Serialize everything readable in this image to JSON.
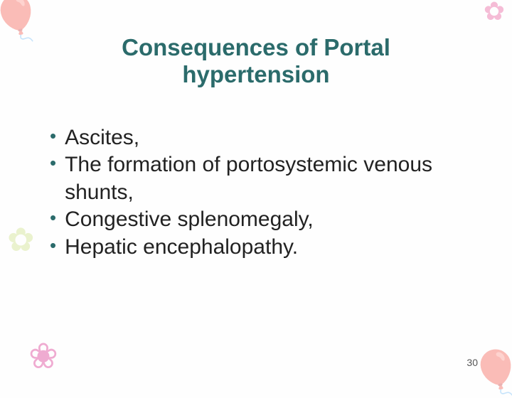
{
  "title": {
    "text": "Consequences of Portal hypertension",
    "fontsize": 33,
    "color": "#2b6b6b",
    "weight": "bold"
  },
  "bullets": {
    "items": [
      "Ascites,",
      "The formation of portosystemic venous shunts,",
      "Congestive splenomegaly,",
      "Hepatic encephalopathy."
    ],
    "fontsize": 30,
    "text_color": "#222222",
    "bullet_color": "#2b6b6b",
    "bullet_char": "•"
  },
  "slide_number": {
    "value": "30",
    "fontsize": 14,
    "color": "#555555"
  },
  "background_color": "#fefefe"
}
